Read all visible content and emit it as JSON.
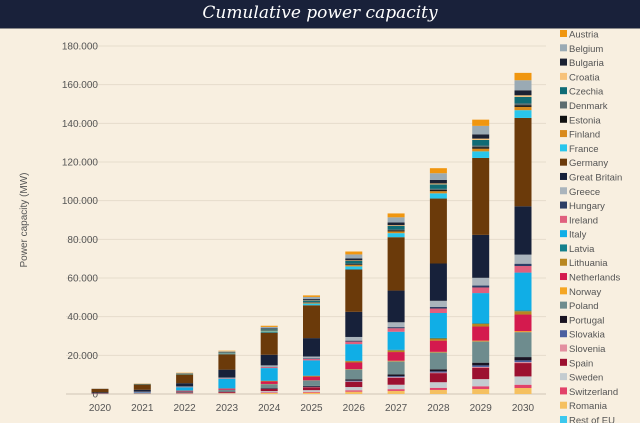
{
  "chart_data": {
    "type": "bar",
    "stacked": true,
    "title": "Cumulative power capacity",
    "xlabel": "",
    "ylabel": "Power capacity (MW)",
    "ylim": [
      0,
      180000
    ],
    "yticks": [
      "0",
      "20.000",
      "40.000",
      "60.000",
      "80.000",
      "100.000",
      "120.000",
      "140.000",
      "160.000",
      "180.000"
    ],
    "grid": true,
    "legend_position": "right",
    "categories": [
      "2020",
      "2021",
      "2022",
      "2023",
      "2024",
      "2025",
      "2026",
      "2027",
      "2028",
      "2029",
      "2030"
    ],
    "series": [
      {
        "name": "Austria",
        "color": "#f0960f",
        "values": [
          0,
          100,
          200,
          300,
          600,
          800,
          1500,
          2000,
          2600,
          3200,
          3800
        ]
      },
      {
        "name": "Belgium",
        "color": "#9aaab4",
        "values": [
          100,
          100,
          200,
          400,
          800,
          1100,
          2100,
          2700,
          3500,
          4400,
          5200
        ]
      },
      {
        "name": "Bulgaria",
        "color": "#1b2133",
        "values": [
          0,
          0,
          100,
          200,
          400,
          600,
          1000,
          1400,
          1800,
          2200,
          2600
        ]
      },
      {
        "name": "Croatia",
        "color": "#f7c27a",
        "values": [
          0,
          0,
          0,
          100,
          100,
          200,
          300,
          400,
          500,
          700,
          800
        ]
      },
      {
        "name": "Czechia",
        "color": "#0f6b75",
        "values": [
          0,
          100,
          100,
          200,
          500,
          700,
          1300,
          1800,
          2300,
          2900,
          3400
        ]
      },
      {
        "name": "Denmark",
        "color": "#5d6d70",
        "values": [
          0,
          0,
          0,
          100,
          100,
          200,
          400,
          500,
          600,
          800,
          900
        ]
      },
      {
        "name": "Estonia",
        "color": "#111111",
        "values": [
          0,
          0,
          0,
          100,
          100,
          200,
          400,
          500,
          600,
          800,
          900
        ]
      },
      {
        "name": "Finland",
        "color": "#d98a1c",
        "values": [
          0,
          0,
          100,
          100,
          300,
          400,
          700,
          900,
          1100,
          1400,
          1700
        ]
      },
      {
        "name": "France",
        "color": "#29c6ec",
        "values": [
          0,
          100,
          200,
          300,
          600,
          900,
          1600,
          2100,
          2700,
          3400,
          4000
        ]
      },
      {
        "name": "Germany",
        "color": "#6b3a0a",
        "values": [
          1800,
          2800,
          4500,
          8000,
          11500,
          17000,
          21900,
          27600,
          33600,
          39800,
          45700
        ]
      },
      {
        "name": "Great Britain",
        "color": "#17213a",
        "values": [
          500,
          1000,
          1700,
          4100,
          5500,
          9500,
          13000,
          16400,
          19300,
          22200,
          25000
        ]
      },
      {
        "name": "Greece",
        "color": "#aab4bc",
        "values": [
          100,
          100,
          200,
          300,
          700,
          1000,
          1900,
          2500,
          3200,
          4000,
          4700
        ]
      },
      {
        "name": "Hungary",
        "color": "#2c3e66",
        "values": [
          0,
          0,
          100,
          100,
          200,
          300,
          500,
          600,
          800,
          1000,
          1200
        ]
      },
      {
        "name": "Ireland",
        "color": "#e0607e",
        "values": [
          0,
          100,
          100,
          200,
          500,
          700,
          1300,
          1800,
          2300,
          2900,
          3400
        ]
      },
      {
        "name": "Italy",
        "color": "#10aee6",
        "values": [
          0,
          300,
          1700,
          5000,
          6500,
          7900,
          8600,
          9300,
          12900,
          15500,
          19500
        ]
      },
      {
        "name": "Latvia",
        "color": "#14808c",
        "values": [
          0,
          0,
          0,
          0,
          100,
          100,
          200,
          300,
          300,
          400,
          500
        ]
      },
      {
        "name": "Lithuania",
        "color": "#b8861f",
        "values": [
          0,
          0,
          100,
          100,
          300,
          400,
          700,
          900,
          1100,
          1400,
          1700
        ]
      },
      {
        "name": "Netherlands",
        "color": "#d41a4e",
        "values": [
          100,
          200,
          400,
          600,
          1300,
          1900,
          3400,
          4500,
          5800,
          7300,
          8600
        ]
      },
      {
        "name": "Norway",
        "color": "#f5a623",
        "values": [
          0,
          0,
          0,
          0,
          100,
          100,
          200,
          300,
          300,
          400,
          500
        ]
      },
      {
        "name": "Poland",
        "color": "#6e8c8e",
        "values": [
          100,
          200,
          500,
          900,
          2000,
          2800,
          5100,
          6800,
          8700,
          11000,
          12900
        ]
      },
      {
        "name": "Portugal",
        "color": "#1a1423",
        "values": [
          0,
          0,
          100,
          100,
          300,
          400,
          700,
          900,
          1100,
          1400,
          1700
        ]
      },
      {
        "name": "Slovakia",
        "color": "#4b5fa0",
        "values": [
          0,
          0,
          0,
          100,
          100,
          200,
          400,
          500,
          600,
          800,
          900
        ]
      },
      {
        "name": "Slovenia",
        "color": "#e38fa0",
        "values": [
          0,
          0,
          0,
          0,
          100,
          100,
          200,
          300,
          300,
          400,
          500
        ]
      },
      {
        "name": "Spain",
        "color": "#9c1030",
        "values": [
          100,
          100,
          300,
          500,
          1100,
          1500,
          2700,
          3600,
          4700,
          5900,
          6900
        ]
      },
      {
        "name": "Sweden",
        "color": "#c4ccd0",
        "values": [
          0,
          100,
          200,
          300,
          700,
          900,
          1700,
          2300,
          2900,
          3700,
          4300
        ]
      },
      {
        "name": "Switzerland",
        "color": "#e2426a",
        "values": [
          0,
          0,
          100,
          100,
          300,
          400,
          700,
          900,
          1100,
          1400,
          1700
        ]
      },
      {
        "name": "Romania",
        "color": "#f5c060",
        "values": [
          0,
          100,
          100,
          200,
          500,
          700,
          1200,
          1600,
          2100,
          2600,
          3100
        ]
      },
      {
        "name": "Rest of EU",
        "color": "#3cc8ee",
        "values": [
          0,
          0,
          0,
          0,
          0,
          0,
          0,
          0,
          0,
          0,
          0
        ]
      }
    ]
  }
}
